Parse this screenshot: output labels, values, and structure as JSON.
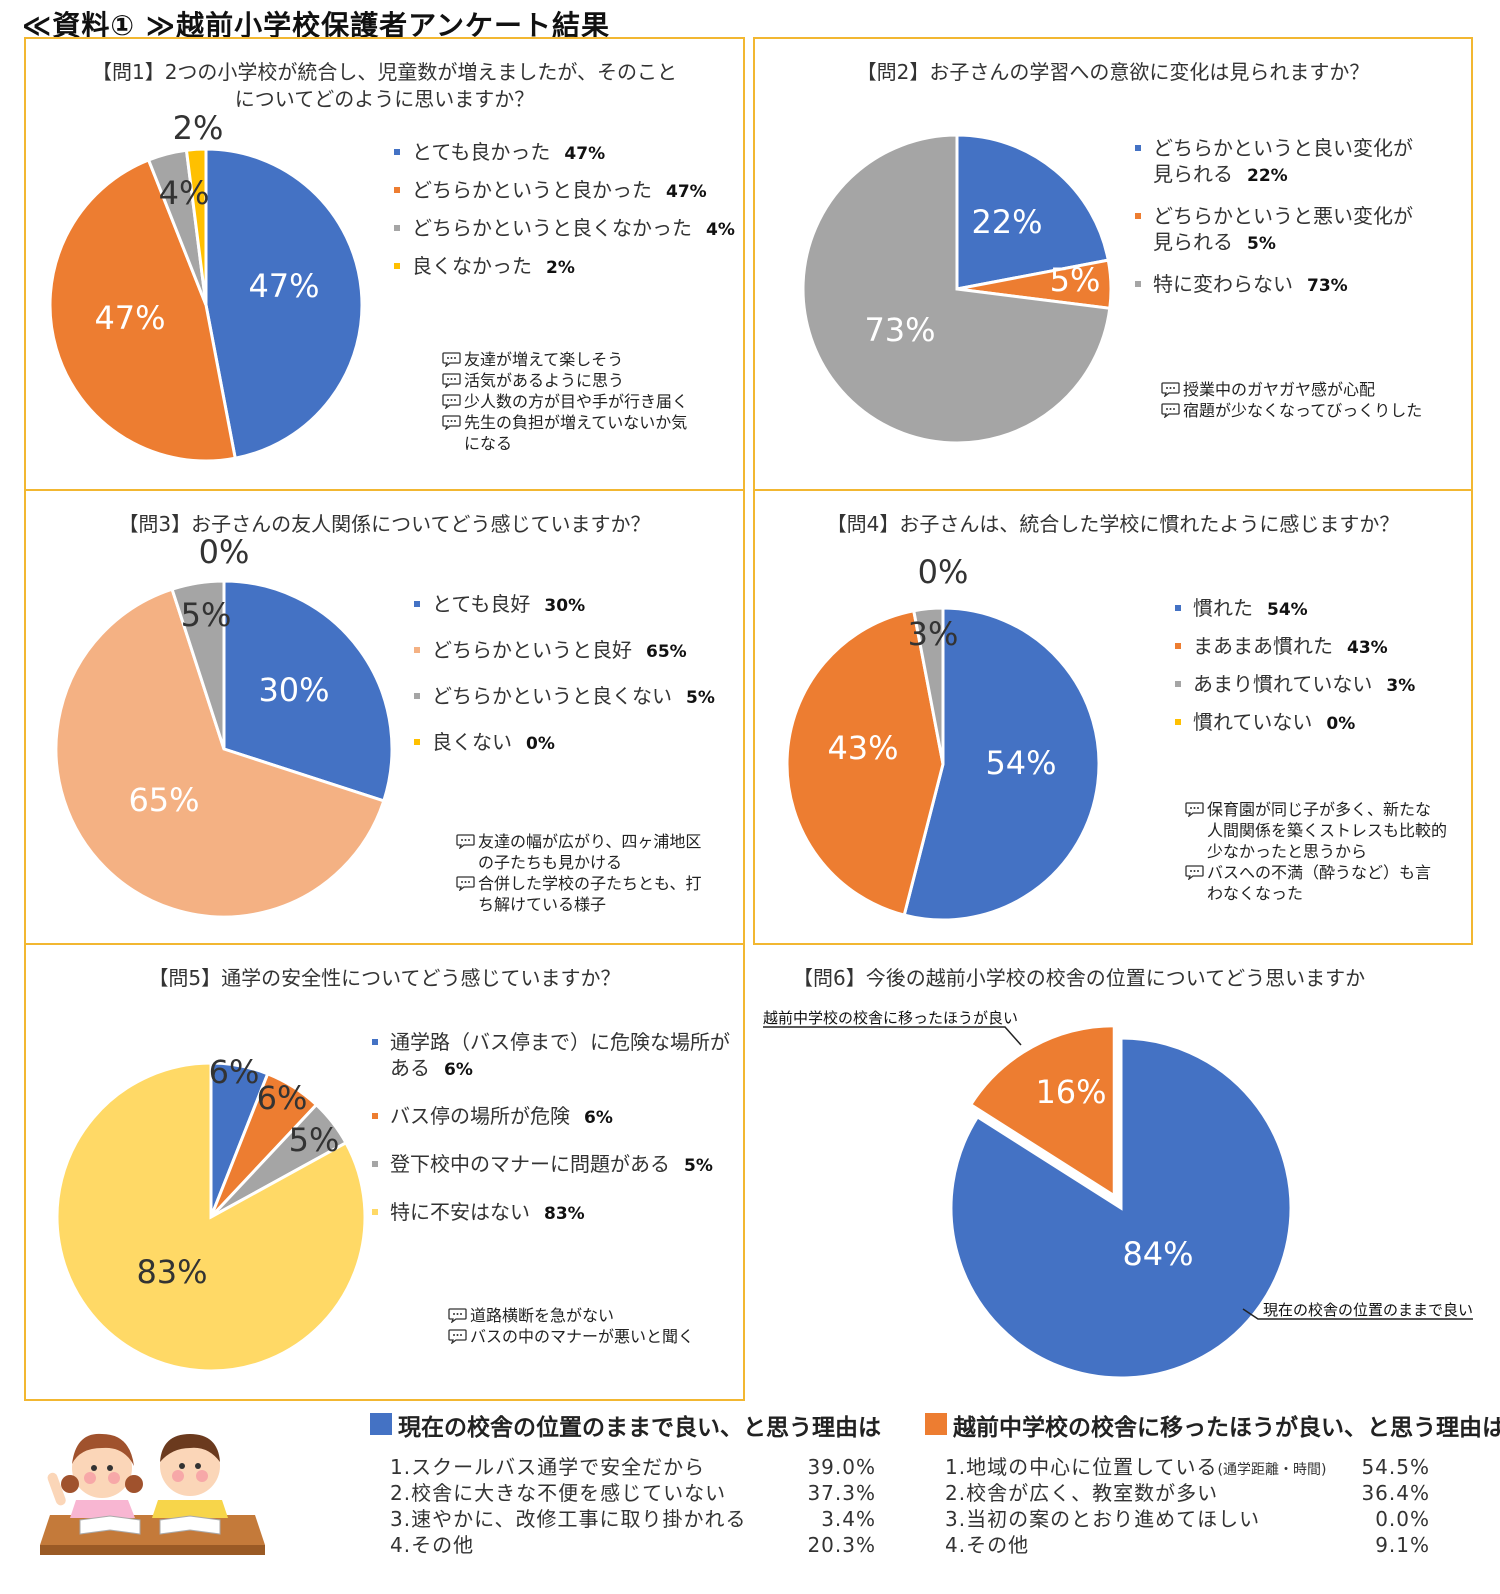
{
  "page": {
    "title": "≪資料① ≫越前小学校保護者アンケート結果"
  },
  "chart_data": [
    {
      "type": "pie",
      "title": "【問1】2つの小学校が統合し、児童数が増えましたが、そのこと\nについてどのように思いますか？",
      "categories": [
        "とても良かった",
        "どちらかというと良かった",
        "どちらかというと良くなかった",
        "良くなかった"
      ],
      "values": [
        47,
        47,
        4,
        2
      ],
      "labels": [
        "47%",
        "47%",
        "4%",
        "2%"
      ],
      "colors": [
        "#4472c4",
        "#ed7d31",
        "#a5a5a5",
        "#ffc000"
      ],
      "comments": [
        "友達が増えて楽しそう",
        "活気があるように思う",
        "少人数の方が目や手が行き届く",
        "先生の負担が増えていないか気\nになる"
      ]
    },
    {
      "type": "pie",
      "title": "【問2】お子さんの学習への意欲に変化は見られますか？",
      "categories": [
        "どちらかというと良い変化が\n見られる",
        "どちらかというと悪い変化が\n見られる",
        "特に変わらない"
      ],
      "values": [
        22,
        5,
        73
      ],
      "labels": [
        "22%",
        "5%",
        "73%"
      ],
      "colors": [
        "#4472c4",
        "#ed7d31",
        "#a5a5a5"
      ],
      "comments": [
        "授業中のガヤガヤ感が心配",
        "宿題が少なくなってびっくりした"
      ]
    },
    {
      "type": "pie",
      "title": "【問3】お子さんの友人関係についてどう感じていますか？",
      "categories": [
        "とても良好",
        "どちらかというと良好",
        "どちらかというと良くない",
        "良くない"
      ],
      "values": [
        30,
        65,
        5,
        0
      ],
      "labels": [
        "30%",
        "65%",
        "5%",
        "0%"
      ],
      "colors": [
        "#4472c4",
        "#f4b183",
        "#a5a5a5",
        "#ffc000"
      ],
      "comments": [
        "友達の幅が広がり、四ヶ浦地区\nの子たちも見かける",
        "合併した学校の子たちとも、打\nち解けている様子"
      ]
    },
    {
      "type": "pie",
      "title": "【問4】お子さんは、統合した学校に慣れたように感じますか？",
      "categories": [
        "慣れた",
        "まあまあ慣れた",
        "あまり慣れていない",
        "慣れていない"
      ],
      "values": [
        54,
        43,
        3,
        0
      ],
      "labels": [
        "54%",
        "43%",
        "3%",
        "0%"
      ],
      "colors": [
        "#4472c4",
        "#ed7d31",
        "#a5a5a5",
        "#ffc000"
      ],
      "comments": [
        "保育園が同じ子が多く、新たな\n人間関係を築くストレスも比較的\n少なかったと思うから",
        "バスへの不満（酔うなど）も言\nわなくなった"
      ]
    },
    {
      "type": "pie",
      "title": "【問5】通学の安全性についてどう感じていますか？",
      "categories": [
        "通学路（バス停まで）に危険な場所が\nある",
        "バス停の場所が危険",
        "登下校中のマナーに問題がある",
        "特に不安はない"
      ],
      "values": [
        6,
        6,
        5,
        83
      ],
      "labels": [
        "6%",
        "6%",
        "5%",
        "83%"
      ],
      "colors": [
        "#4472c4",
        "#ed7d31",
        "#a5a5a5",
        "#ffd966"
      ],
      "comments": [
        "道路横断を急がない",
        "バスの中のマナーが悪いと聞く"
      ]
    },
    {
      "type": "pie",
      "title": "【問6】今後の越前小学校の校舎の位置についてどう思いますか",
      "categories": [
        "現在の校舎の位置のままで良い",
        "越前中学校の校舎に移ったほうが良い"
      ],
      "values": [
        84,
        16
      ],
      "labels": [
        "84%",
        "16%"
      ],
      "colors": [
        "#4472c4",
        "#ed7d31"
      ]
    }
  ],
  "reasons": {
    "stay": {
      "title": "現在の校舎の位置のままで良い、と思う理由は",
      "color": "#4472c4",
      "items": [
        {
          "label": "1.スクールバス通学で安全だから",
          "value": "39.0%"
        },
        {
          "label": "2.校舎に大きな不便を感じていない",
          "value": "37.3%"
        },
        {
          "label": "3.速やかに、改修工事に取り掛かれる",
          "value": "3.4%"
        },
        {
          "label": "4.その他",
          "value": "20.3%"
        }
      ]
    },
    "move": {
      "title": "越前中学校の校舎に移ったほうが良い、と思う理由は",
      "color": "#ed7d31",
      "items": [
        {
          "label": "1.地域の中心に位置している",
          "note": "(通学距離・時間)",
          "value": "54.5%"
        },
        {
          "label": "2.校舎が広く、教室数が多い",
          "value": "36.4%"
        },
        {
          "label": "3.当初の案のとおり進めてほしい",
          "value": "0.0%"
        },
        {
          "label": "4.その他",
          "value": "9.1%"
        }
      ]
    }
  }
}
